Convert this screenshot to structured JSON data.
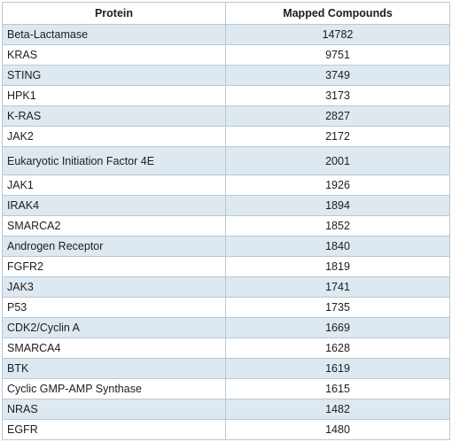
{
  "table": {
    "headers": [
      "Protein",
      "Mapped Compounds"
    ],
    "rows": [
      {
        "protein": "Beta-Lactamase",
        "count": "14782"
      },
      {
        "protein": "KRAS",
        "count": "9751"
      },
      {
        "protein": "STING",
        "count": "3749"
      },
      {
        "protein": "HPK1",
        "count": "3173"
      },
      {
        "protein": "K-RAS",
        "count": "2827"
      },
      {
        "protein": "JAK2",
        "count": "2172"
      },
      {
        "protein": "Eukaryotic Initiation Factor 4E",
        "count": "2001"
      },
      {
        "protein": "JAK1",
        "count": "1926"
      },
      {
        "protein": "IRAK4",
        "count": "1894"
      },
      {
        "protein": "SMARCA2",
        "count": "1852"
      },
      {
        "protein": "Androgen Receptor",
        "count": "1840"
      },
      {
        "protein": "FGFR2",
        "count": "1819"
      },
      {
        "protein": "JAK3",
        "count": "1741"
      },
      {
        "protein": "P53",
        "count": "1735"
      },
      {
        "protein": "CDK2/Cyclin A",
        "count": "1669"
      },
      {
        "protein": "SMARCA4",
        "count": "1628"
      },
      {
        "protein": "BTK",
        "count": "1619"
      },
      {
        "protein": "Cyclic GMP-AMP Synthase",
        "count": "1615"
      },
      {
        "protein": "NRAS",
        "count": "1482"
      },
      {
        "protein": "EGFR",
        "count": "1480"
      }
    ]
  },
  "colors": {
    "stripe": "#dde8f0",
    "border": "#b7c8d6",
    "text": "#1d1d1d"
  }
}
